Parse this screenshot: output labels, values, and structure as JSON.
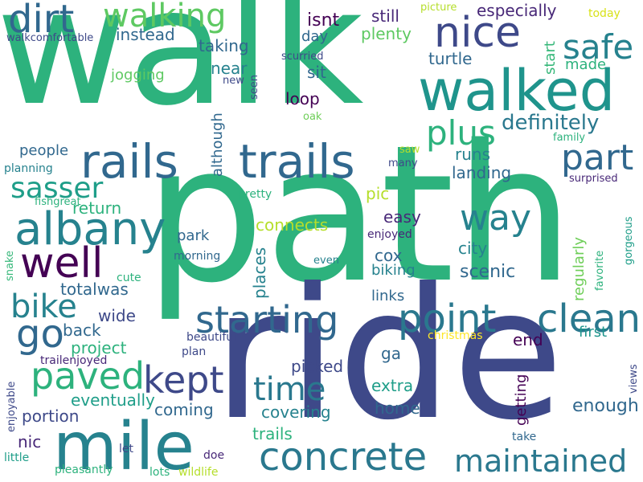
{
  "words": [
    {
      "text": "walk",
      "color": "#2db27d"
    },
    {
      "text": "path",
      "color": "#2db27d"
    },
    {
      "text": "ride",
      "color": "#3e4989"
    },
    {
      "text": "walked",
      "color": "#1f948c"
    },
    {
      "text": "mile",
      "color": "#26828e"
    },
    {
      "text": "rails",
      "color": "#31688e"
    },
    {
      "text": "trails",
      "color": "#31688e"
    },
    {
      "text": "dirt",
      "color": "#31688e"
    },
    {
      "text": "walking",
      "color": "#5ec962"
    },
    {
      "text": "nice",
      "color": "#3e4989"
    },
    {
      "text": "safe",
      "color": "#26828e"
    },
    {
      "text": "albany",
      "color": "#26828e"
    },
    {
      "text": "concrete",
      "color": "#2a788e"
    },
    {
      "text": "maintained",
      "color": "#2a788e"
    },
    {
      "text": "well",
      "color": "#440154"
    },
    {
      "text": "plus",
      "color": "#2db27d"
    },
    {
      "text": "part",
      "color": "#31688e"
    },
    {
      "text": "definitely",
      "color": "#2a788e"
    },
    {
      "text": "sasser",
      "color": "#1f9e89"
    },
    {
      "text": "way",
      "color": "#26828e"
    },
    {
      "text": "point",
      "color": "#2a788e"
    },
    {
      "text": "clean",
      "color": "#2a788e"
    },
    {
      "text": "starting",
      "color": "#31688e"
    },
    {
      "text": "bike",
      "color": "#26828e"
    },
    {
      "text": "go",
      "color": "#31688e"
    },
    {
      "text": "paved",
      "color": "#2db27d"
    },
    {
      "text": "kept",
      "color": "#3e4989"
    },
    {
      "text": "time",
      "color": "#2a788e"
    },
    {
      "text": "isnt",
      "color": "#440154"
    },
    {
      "text": "still",
      "color": "#482878"
    },
    {
      "text": "especially",
      "color": "#482878"
    },
    {
      "text": "instead",
      "color": "#31688e"
    },
    {
      "text": "day",
      "color": "#31688e"
    },
    {
      "text": "plenty",
      "color": "#5ec962"
    },
    {
      "text": "taking",
      "color": "#31688e"
    },
    {
      "text": "turtle",
      "color": "#31688e"
    },
    {
      "text": "near",
      "color": "#26828e"
    },
    {
      "text": "sit",
      "color": "#31688e"
    },
    {
      "text": "loop",
      "color": "#440154"
    },
    {
      "text": "jogging",
      "color": "#5ec962"
    },
    {
      "text": "made",
      "color": "#2db27d"
    },
    {
      "text": "runs",
      "color": "#26828e"
    },
    {
      "text": "landing",
      "color": "#31688e"
    },
    {
      "text": "people",
      "color": "#31688e"
    },
    {
      "text": "return",
      "color": "#2db27d"
    },
    {
      "text": "connects",
      "color": "#b5de2b"
    },
    {
      "text": "easy",
      "color": "#482878"
    },
    {
      "text": "pic",
      "color": "#b5de2b"
    },
    {
      "text": "park",
      "color": "#31688e"
    },
    {
      "text": "city",
      "color": "#26828e"
    },
    {
      "text": "cox",
      "color": "#31688e"
    },
    {
      "text": "scenic",
      "color": "#31688e"
    },
    {
      "text": "biking",
      "color": "#26828e"
    },
    {
      "text": "totalwas",
      "color": "#31688e"
    },
    {
      "text": "wide",
      "color": "#3e4989"
    },
    {
      "text": "links",
      "color": "#31688e"
    },
    {
      "text": "back",
      "color": "#31688e"
    },
    {
      "text": "project",
      "color": "#2db27d"
    },
    {
      "text": "end",
      "color": "#440154"
    },
    {
      "text": "first",
      "color": "#1f948c"
    },
    {
      "text": "ga",
      "color": "#31688e"
    },
    {
      "text": "eventually",
      "color": "#1f9e89"
    },
    {
      "text": "picked",
      "color": "#3e4989"
    },
    {
      "text": "extra",
      "color": "#1f9e89"
    },
    {
      "text": "portion",
      "color": "#3e4989"
    },
    {
      "text": "coming",
      "color": "#31688e"
    },
    {
      "text": "home",
      "color": "#31688e"
    },
    {
      "text": "enough",
      "color": "#31688e"
    },
    {
      "text": "covering",
      "color": "#26828e"
    },
    {
      "text": "nic",
      "color": "#482878"
    },
    {
      "text": "trails",
      "color": "#2db27d"
    },
    {
      "text": "take",
      "color": "#31688e"
    },
    {
      "text": "pretty",
      "color": "#2db27d"
    },
    {
      "text": "enjoyed",
      "color": "#482878"
    },
    {
      "text": "even",
      "color": "#26828e"
    },
    {
      "text": "morning",
      "color": "#31688e"
    },
    {
      "text": "cute",
      "color": "#2db27d"
    },
    {
      "text": "beautiful",
      "color": "#3e4989"
    },
    {
      "text": "plan",
      "color": "#3e4989"
    },
    {
      "text": "christmas",
      "color": "#fde725"
    },
    {
      "text": "trailenjoyed",
      "color": "#482878"
    },
    {
      "text": "let",
      "color": "#3e4989"
    },
    {
      "text": "doe",
      "color": "#482878"
    },
    {
      "text": "little",
      "color": "#1f9e89"
    },
    {
      "text": "pleasantly",
      "color": "#2db27d"
    },
    {
      "text": "lots",
      "color": "#2db27d"
    },
    {
      "text": "wildlife",
      "color": "#b5de2b"
    },
    {
      "text": "walkcomfortable",
      "color": "#3e4989"
    },
    {
      "text": "picture",
      "color": "#b5de2b"
    },
    {
      "text": "today",
      "color": "#d8e219"
    },
    {
      "text": "scurried",
      "color": "#3e4989"
    },
    {
      "text": "new",
      "color": "#3e4989"
    },
    {
      "text": "oak",
      "color": "#6ece58"
    },
    {
      "text": "saw",
      "color": "#b5de2b"
    },
    {
      "text": "many",
      "color": "#3e4989"
    },
    {
      "text": "family",
      "color": "#2db27d"
    },
    {
      "text": "surprised",
      "color": "#482878"
    },
    {
      "text": "planning",
      "color": "#26828e"
    },
    {
      "text": "fishgreat",
      "color": "#2db27d"
    },
    {
      "text": "seen",
      "color": "#3e4989"
    },
    {
      "text": "snake",
      "color": "#35b779"
    },
    {
      "text": "gorgeous",
      "color": "#1f9e89"
    },
    {
      "text": "favorite",
      "color": "#2db27d"
    },
    {
      "text": "views",
      "color": "#3e4989"
    },
    {
      "text": "enjoyable",
      "color": "#3e4989"
    },
    {
      "text": "regularly",
      "color": "#6ece58"
    },
    {
      "text": "getting",
      "color": "#440154"
    },
    {
      "text": "although",
      "color": "#31688e"
    },
    {
      "text": "places",
      "color": "#26828e"
    },
    {
      "text": "start",
      "color": "#35b779"
    }
  ]
}
